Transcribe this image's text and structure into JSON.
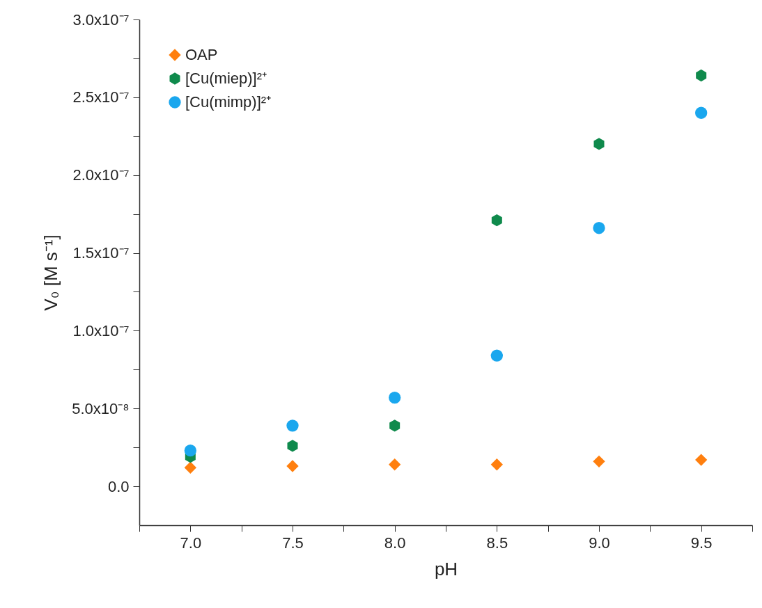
{
  "chart_data": {
    "type": "scatter",
    "xlabel": "pH",
    "ylabel": "V₀ [M s⁻¹]",
    "xlim": [
      6.75,
      9.75
    ],
    "xticks": [
      {
        "value": 6.75,
        "label": null
      },
      {
        "value": 7,
        "label": "7.0"
      },
      {
        "value": 7.25,
        "label": null
      },
      7.5,
      {
        "value": 7.75,
        "label": null
      },
      {
        "value": 8,
        "label": "8.0"
      },
      {
        "value": 8.25,
        "label": null
      },
      8.5,
      {
        "value": 8.75,
        "label": null
      },
      {
        "value": 9,
        "label": "9.0"
      },
      {
        "value": 9.25,
        "label": null
      },
      9.5,
      {
        "value": 9.75,
        "label": null
      }
    ],
    "ylim": [
      -2.5e-08,
      3e-07
    ],
    "yticks": [
      {
        "value": 0,
        "label": "0.0"
      },
      {
        "value": 2.5e-08,
        "label": null
      },
      {
        "value": 5e-08,
        "label": "5.0x10⁻⁸"
      },
      {
        "value": 7.5e-08,
        "label": null
      },
      {
        "value": 1e-07,
        "label": "1.0x10⁻⁷"
      },
      {
        "value": 1.25e-07,
        "label": null
      },
      {
        "value": 1.5e-07,
        "label": "1.5x10⁻⁷"
      },
      {
        "value": 1.75e-07,
        "label": null
      },
      {
        "value": 2e-07,
        "label": "2.0x10⁻⁷"
      },
      {
        "value": 2.25e-07,
        "label": null
      },
      {
        "value": 2.5e-07,
        "label": "2.5x10⁻⁷"
      },
      {
        "value": 2.75e-07,
        "label": null
      },
      {
        "value": 3e-07,
        "label": "3.0x10⁻⁷"
      }
    ],
    "grid": false,
    "legend": "top left",
    "series": [
      {
        "name": "OAP",
        "color": "#ff7f0e",
        "marker": "diamond",
        "x": [
          7.0,
          7.5,
          8.0,
          8.5,
          9.0,
          9.5
        ],
        "values": [
          1.2e-08,
          1.3e-08,
          1.4e-08,
          1.4e-08,
          1.6e-08,
          1.7e-08
        ]
      },
      {
        "name": "[Cu(miep)]²⁺",
        "color": "#0f8a4c",
        "x": [
          7.0,
          7.5,
          8.0,
          8.5,
          9.0,
          9.5
        ],
        "values": [
          1.9e-08,
          2.6e-08,
          3.9e-08,
          1.71e-07,
          2.2e-07,
          2.64e-07
        ]
      },
      {
        "name": "[Cu(mimp)]²⁺",
        "color": "#1aa7ee",
        "marker": "circle",
        "x": [
          7.0,
          7.5,
          8.0,
          8.5,
          9.0,
          9.5
        ],
        "values": [
          2.3e-08,
          3.9e-08,
          5.7e-08,
          8.4e-08,
          1.66e-07,
          2.4e-07
        ]
      }
    ]
  }
}
